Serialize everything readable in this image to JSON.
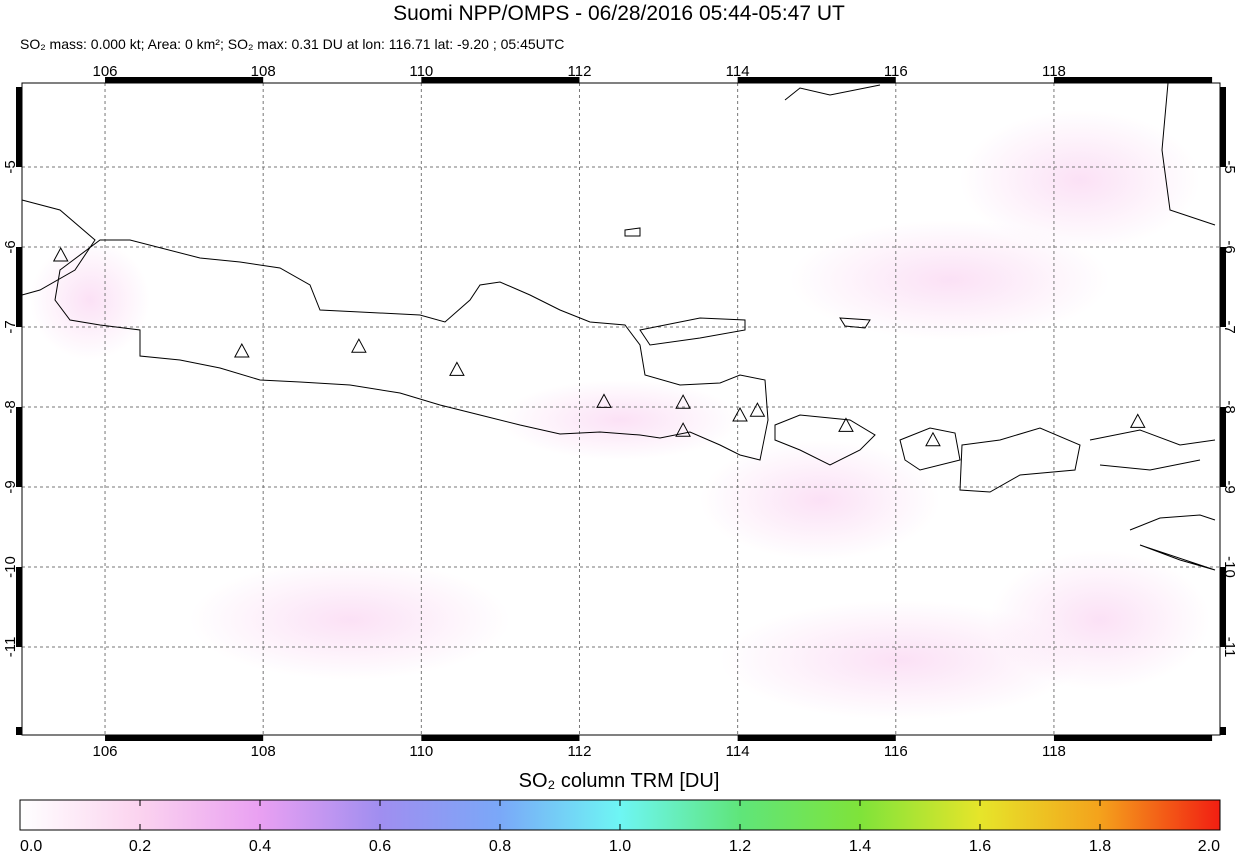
{
  "title": "Suomi NPP/OMPS - 06/28/2016 05:44-05:47 UT",
  "subtitle": "SO₂ mass: 0.000 kt; Area: 0 km²; SO₂ max: 0.31 DU at lon: 116.71 lat: -9.20 ; 05:45UTC",
  "map": {
    "xlim": [
      104.95,
      120.1
    ],
    "ylim": [
      -12.1,
      -3.95
    ],
    "xticks": [
      106,
      108,
      110,
      112,
      114,
      116,
      118
    ],
    "yticks": [
      -5,
      -6,
      -7,
      -8,
      -9,
      -10,
      -11
    ],
    "grid": true,
    "volcanoes": [
      {
        "lon": 105.44,
        "lat": -6.1
      },
      {
        "lon": 107.73,
        "lat": -7.3
      },
      {
        "lon": 109.21,
        "lat": -7.24
      },
      {
        "lon": 110.45,
        "lat": -7.53
      },
      {
        "lon": 112.31,
        "lat": -7.93
      },
      {
        "lon": 113.31,
        "lat": -7.94
      },
      {
        "lon": 113.31,
        "lat": -8.29
      },
      {
        "lon": 114.03,
        "lat": -8.1
      },
      {
        "lon": 114.25,
        "lat": -8.04
      },
      {
        "lon": 115.37,
        "lat": -8.23
      },
      {
        "lon": 116.47,
        "lat": -8.41
      },
      {
        "lon": 119.06,
        "lat": -8.18
      }
    ]
  },
  "colorbar": {
    "label": "SO₂ column TRM [DU]",
    "lim": [
      0,
      2
    ],
    "ticks": [
      {
        "value": 0,
        "label": "0.0"
      },
      {
        "value": 0.2,
        "label": "0.2"
      },
      {
        "value": 0.4,
        "label": "0.4"
      },
      {
        "value": 0.6,
        "label": "0.6"
      },
      {
        "value": 0.8,
        "label": "0.8"
      },
      {
        "value": 1,
        "label": "1.0"
      },
      {
        "value": 1.2,
        "label": "1.2"
      },
      {
        "value": 1.4,
        "label": "1.4"
      },
      {
        "value": 1.6,
        "label": "1.6"
      },
      {
        "value": 1.8,
        "label": "1.8"
      },
      {
        "value": 2,
        "label": "2.0"
      }
    ],
    "colors": [
      "#ffffff",
      "#fbd3ef",
      "#e9a0f2",
      "#a08ef0",
      "#7aa8f8",
      "#6ef6f4",
      "#5fe57a",
      "#7fe33a",
      "#e6e52a",
      "#f4a21c",
      "#f21e12"
    ]
  }
}
